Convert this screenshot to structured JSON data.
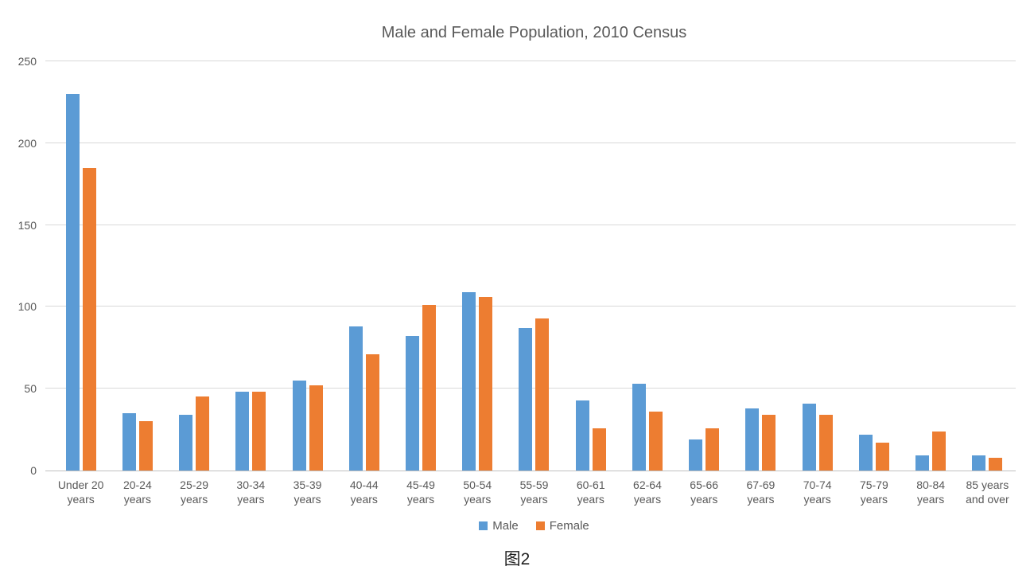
{
  "figure": {
    "caption": "图2"
  },
  "chart_data": {
    "type": "bar",
    "title": "Male and Female Population, 2010 Census",
    "xlabel": "",
    "ylabel": "",
    "categories": [
      "Under 20 years",
      "20-24 years",
      "25-29 years",
      "30-34 years",
      "35-39 years",
      "40-44 years",
      "45-49 years",
      "50-54 years",
      "55-59 years",
      "60-61 years",
      "62-64 years",
      "65-66 years",
      "67-69 years",
      "70-74 years",
      "75-79 years",
      "80-84 years",
      "85 years and over"
    ],
    "categories_display": [
      [
        "Under 20",
        "years"
      ],
      [
        "20-24",
        "years"
      ],
      [
        "25-29",
        "years"
      ],
      [
        "30-34",
        "years"
      ],
      [
        "35-39",
        "years"
      ],
      [
        "40-44",
        "years"
      ],
      [
        "45-49",
        "years"
      ],
      [
        "50-54",
        "years"
      ],
      [
        "55-59",
        "years"
      ],
      [
        "60-61",
        "years"
      ],
      [
        "62-64",
        "years"
      ],
      [
        "65-66",
        "years"
      ],
      [
        "67-69",
        "years"
      ],
      [
        "70-74",
        "years"
      ],
      [
        "75-79",
        "years"
      ],
      [
        "80-84",
        "years"
      ],
      [
        "85 years",
        "and over"
      ]
    ],
    "series": [
      {
        "name": "Male",
        "color": "#5B9BD5",
        "values": [
          230,
          35,
          34,
          48,
          55,
          88,
          82,
          109,
          87,
          43,
          53,
          19,
          38,
          41,
          22,
          9,
          9
        ]
      },
      {
        "name": "Female",
        "color": "#ED7D31",
        "values": [
          185,
          30,
          45,
          48,
          52,
          71,
          101,
          106,
          93,
          26,
          36,
          26,
          34,
          34,
          17,
          24,
          8
        ]
      }
    ],
    "ylim": [
      0,
      250
    ],
    "yticks": [
      0,
      50,
      100,
      150,
      200,
      250
    ],
    "grid": "horizontal-on",
    "legend_position": "bottom",
    "colors": {
      "title_text": "#595959",
      "axis_text": "#595959",
      "gridline": "#D9D9D9",
      "axis_line": "#BFBFBF",
      "background": "#FFFFFF",
      "caption_text": "#1F1F1F"
    }
  }
}
